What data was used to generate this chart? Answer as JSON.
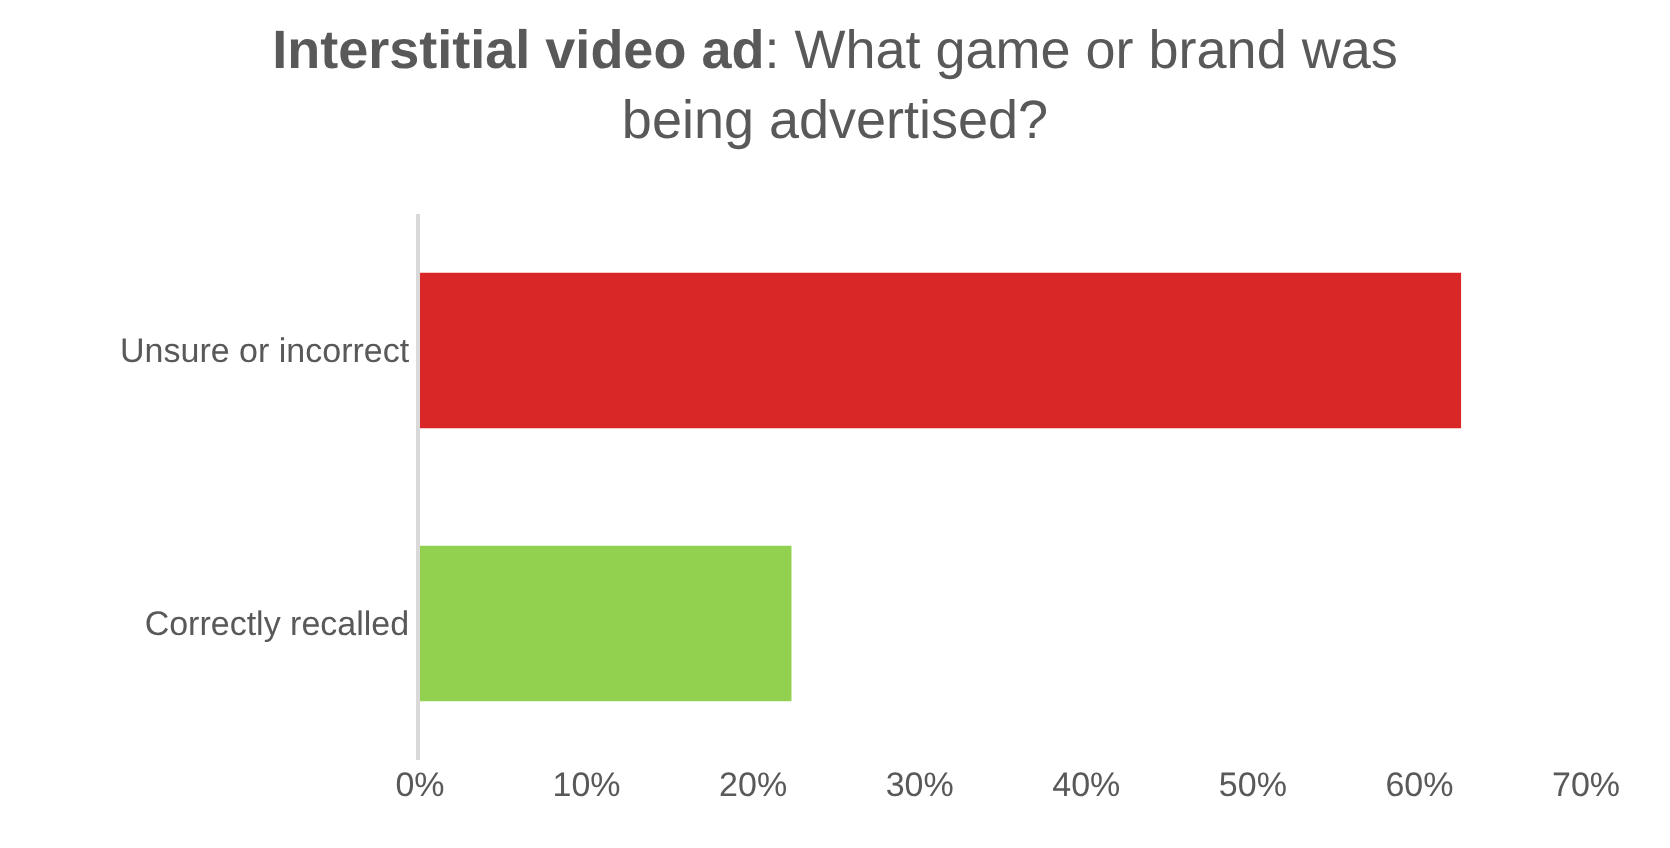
{
  "chart_data": {
    "type": "bar",
    "orientation": "horizontal",
    "title": "Interstitial video ad: What game or brand was being advertised?",
    "categories": [
      "Unsure or incorrect",
      "Correctly recalled"
    ],
    "values": [
      62.5,
      22.3
    ],
    "colors": [
      "#d92727",
      "#92d050"
    ],
    "xlim": [
      0,
      70
    ],
    "xticks": [
      {
        "value": 0,
        "label": "0%"
      },
      {
        "value": 10,
        "label": "10%"
      },
      {
        "value": 20,
        "label": "20%"
      },
      {
        "value": 30,
        "label": "30%"
      },
      {
        "value": 40,
        "label": "40%"
      },
      {
        "value": 50,
        "label": "50%"
      },
      {
        "value": 60,
        "label": "60%"
      },
      {
        "value": 70,
        "label": "70%"
      }
    ],
    "grid": false
  }
}
